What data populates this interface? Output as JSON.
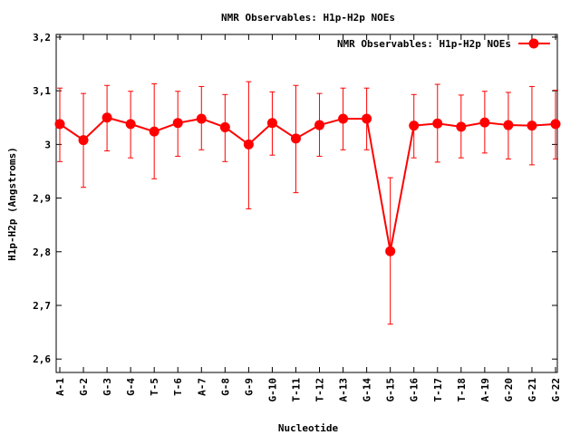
{
  "chart_data": {
    "type": "line",
    "title": "NMR Observables: H1p-H2p NOEs",
    "xlabel": "Nucleotide",
    "ylabel": "H1p-H2p (Angstroms)",
    "ylim": [
      2.575,
      3.205
    ],
    "yticks": [
      2.6,
      2.7,
      2.8,
      2.9,
      3,
      3.1,
      3.2
    ],
    "ytick_labels": [
      "2,6",
      "2,7",
      "2,8",
      "2,9",
      "3",
      "3,1",
      "3,2"
    ],
    "legend": {
      "position": "top-right"
    },
    "categories": [
      "A-1",
      "G-2",
      "G-3",
      "G-4",
      "T-5",
      "T-6",
      "A-7",
      "G-8",
      "G-9",
      "G-10",
      "T-11",
      "T-12",
      "A-13",
      "G-14",
      "G-15",
      "G-16",
      "T-17",
      "T-18",
      "A-19",
      "G-20",
      "G-21",
      "G-22"
    ],
    "series": [
      {
        "name": "NMR Observables: H1p-H2p NOEs",
        "color": "#ff0000",
        "values": [
          3.038,
          3.008,
          3.05,
          3.038,
          3.024,
          3.04,
          3.048,
          3.032,
          3.0,
          3.04,
          3.011,
          3.036,
          3.048,
          3.048,
          2.801,
          3.035,
          3.039,
          3.033,
          3.041,
          3.036,
          3.035,
          3.038
        ],
        "err_low": [
          2.968,
          2.92,
          2.988,
          2.975,
          2.936,
          2.978,
          2.99,
          2.968,
          2.88,
          2.98,
          2.91,
          2.978,
          2.99,
          2.99,
          2.665,
          2.975,
          2.967,
          2.975,
          2.984,
          2.973,
          2.962,
          2.973
        ],
        "err_high": [
          3.105,
          3.095,
          3.11,
          3.099,
          3.113,
          3.099,
          3.108,
          3.093,
          3.117,
          3.098,
          3.11,
          3.095,
          3.105,
          3.105,
          2.938,
          3.093,
          3.112,
          3.092,
          3.099,
          3.097,
          3.108,
          3.101
        ]
      }
    ]
  }
}
